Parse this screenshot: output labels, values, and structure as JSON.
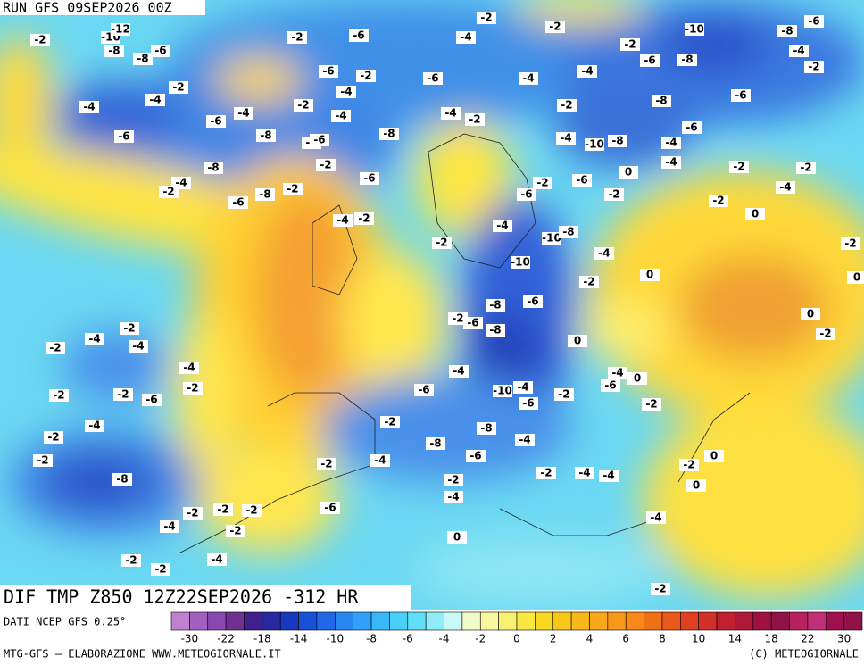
{
  "header": {
    "run": "RUN GFS 09SEP2026 00Z"
  },
  "map": {
    "title": "DIF TMP Z850 12Z22SEP2026 -312 HR",
    "contour_labels": [
      -2,
      -8,
      -8,
      -6,
      -10,
      -12,
      -2,
      -6,
      -4,
      -2,
      -2,
      -2,
      -10,
      -8,
      -6,
      -4,
      -2,
      -6,
      -2,
      -4,
      -6,
      -4,
      -4,
      -6,
      -8,
      -2,
      -4,
      -4,
      -6,
      -6,
      -4,
      -8,
      -2,
      -4,
      -8,
      -4,
      -6,
      -4,
      -2,
      -2,
      -8,
      -6,
      -6,
      -4,
      -10,
      -8,
      -4,
      -4,
      0,
      -2,
      -2,
      -4,
      -8,
      -4,
      -2,
      -6,
      -8,
      -2,
      -2,
      -6,
      -6,
      -2,
      -6,
      -2,
      -2,
      0,
      -4,
      -2,
      -2,
      -4,
      -10,
      -8,
      -4,
      -10,
      0,
      -2,
      -2,
      0,
      0,
      -2,
      -6,
      -8,
      -2,
      -6,
      -8,
      0,
      -2,
      -4,
      -4,
      -2,
      -4,
      -2,
      -2,
      -6,
      -2,
      -4,
      -6,
      -10,
      -4,
      -6,
      -2,
      -6,
      -4,
      0,
      -2,
      -4,
      -2,
      -2,
      -8,
      -8,
      -4,
      -2,
      -2,
      -4,
      -6,
      -2,
      -4,
      -4,
      -2,
      0,
      0,
      -4,
      -8,
      -2,
      -4,
      -2,
      -2,
      -2,
      -6,
      -4,
      -2,
      0,
      -2,
      -2,
      -4,
      -2
    ]
  },
  "scale": {
    "source": "DATI NCEP GFS 0.25°",
    "labels": [
      -30,
      -22,
      -18,
      -14,
      -10,
      -8,
      -6,
      -4,
      -2,
      0,
      2,
      4,
      6,
      8,
      10,
      14,
      18,
      22,
      30
    ],
    "colors": [
      "#c080d0",
      "#a060c0",
      "#8848b0",
      "#703090",
      "#40208c",
      "#2828a0",
      "#1838c0",
      "#1850d8",
      "#2068e8",
      "#2888f0",
      "#30a0f8",
      "#38b8f8",
      "#48d0f8",
      "#60e0f8",
      "#90ecf8",
      "#c8f8f8",
      "#f0fcc8",
      "#f8f8a0",
      "#f8f070",
      "#f8e840",
      "#f8d820",
      "#f8c818",
      "#f8b818",
      "#f8a818",
      "#f89818",
      "#f88818",
      "#f07018",
      "#e85818",
      "#e04020",
      "#d03028",
      "#c02030",
      "#b01838",
      "#a01040",
      "#901048",
      "#b82060",
      "#c03078",
      "#a01050",
      "#901048"
    ]
  },
  "footer": {
    "left": "MTG-GFS — ELABORAZIONE WWW.METEOGIORNALE.IT",
    "right": "(C) METEOGIORNALE"
  }
}
